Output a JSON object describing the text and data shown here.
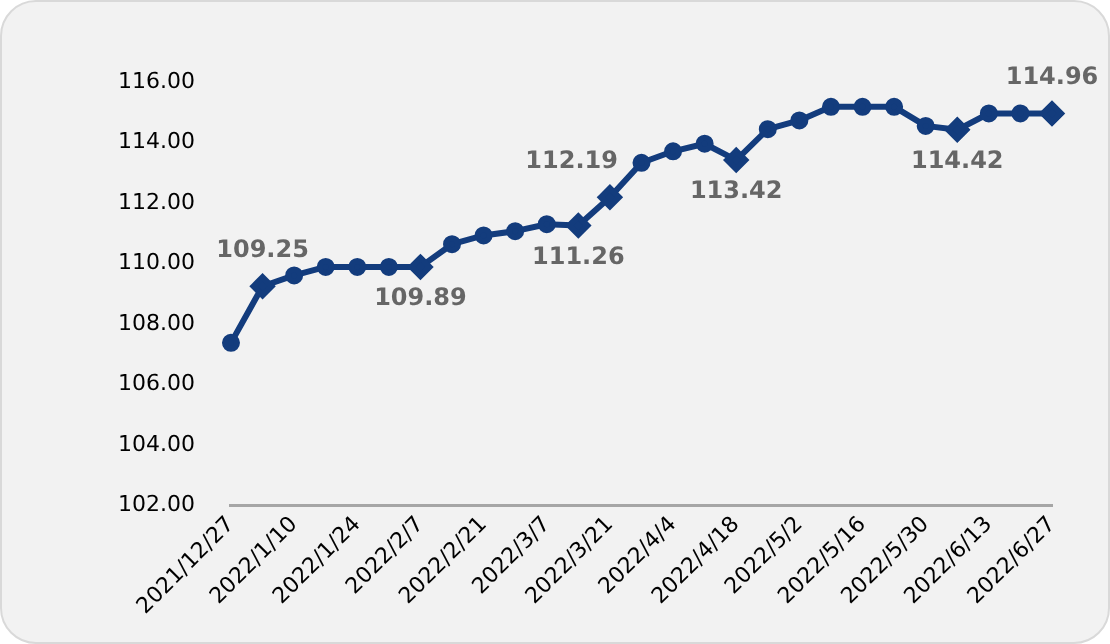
{
  "chart_data": {
    "type": "line",
    "categories": [
      "2021/12/27",
      null,
      "2022/1/10",
      null,
      "2022/1/24",
      null,
      "2022/2/7",
      null,
      "2022/2/21",
      null,
      "2022/3/7",
      null,
      "2022/3/21",
      null,
      "2022/4/4",
      null,
      "2022/4/18",
      null,
      "2022/5/2",
      null,
      "2022/5/16",
      null,
      "2022/5/30",
      null,
      "2022/6/13",
      null,
      "2022/6/27"
    ],
    "series": [
      {
        "color": "#133c7d",
        "values": [
          107.38,
          109.25,
          109.61,
          109.89,
          109.89,
          109.89,
          109.89,
          110.64,
          110.93,
          111.07,
          111.3,
          111.26,
          112.19,
          113.33,
          113.71,
          113.96,
          113.42,
          114.44,
          114.73,
          115.18,
          115.18,
          115.18,
          114.55,
          114.42,
          114.96,
          114.96,
          114.96
        ],
        "value_labels": [
          null,
          "109.25",
          null,
          null,
          null,
          null,
          "109.89",
          null,
          null,
          null,
          null,
          "111.26",
          "112.19",
          null,
          null,
          null,
          "113.42",
          null,
          null,
          null,
          null,
          null,
          null,
          "114.42",
          null,
          null,
          "114.96"
        ]
      }
    ],
    "ylim": [
      102,
      116
    ],
    "yticks": [
      {
        "value": 102,
        "label": "102.00"
      },
      {
        "value": 104,
        "label": "104.00"
      },
      {
        "value": 106,
        "label": "106.00"
      },
      {
        "value": 108,
        "label": "108.00"
      },
      {
        "value": 110,
        "label": "110.00"
      },
      {
        "value": 112,
        "label": "112.00"
      },
      {
        "value": 114,
        "label": "114.00"
      },
      {
        "value": 116,
        "label": "116.00"
      }
    ],
    "grid": false,
    "legend": false,
    "marker": "circle",
    "line_style": "solid"
  }
}
